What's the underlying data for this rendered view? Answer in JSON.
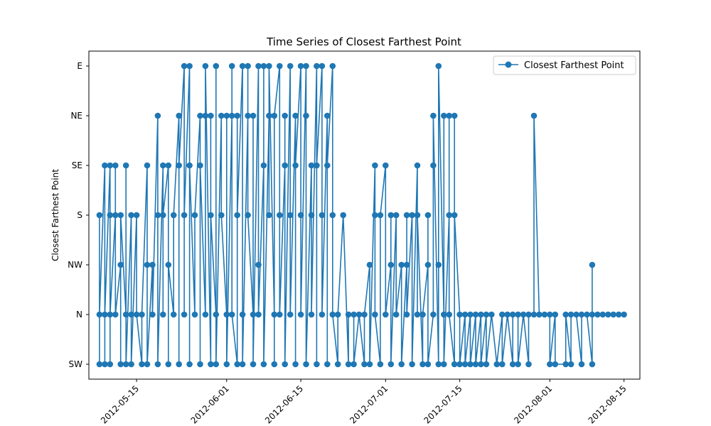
{
  "chart_data": {
    "type": "line",
    "title": "Time Series of Closest Farthest Point",
    "xlabel": "",
    "ylabel": "Closest Farthest Point",
    "y_categories": [
      "SW",
      "N",
      "NW",
      "S",
      "SE",
      "NE",
      "E"
    ],
    "x_ticks": [
      "2012-05-15",
      "2012-06-01",
      "2012-06-15",
      "2012-07-01",
      "2012-07-15",
      "2012-08-01",
      "2012-08-15"
    ],
    "xlim": [
      "2012-05-06",
      "2012-08-18"
    ],
    "grid": false,
    "legend_position": "top-right",
    "series": [
      {
        "name": "Closest Farthest Point",
        "color": "#1f77b4",
        "marker": "circle",
        "points": [
          [
            "2012-05-08",
            "SW"
          ],
          [
            "2012-05-08",
            "S"
          ],
          [
            "2012-05-08",
            "N"
          ],
          [
            "2012-05-09",
            "SE"
          ],
          [
            "2012-05-09",
            "SW"
          ],
          [
            "2012-05-09",
            "N"
          ],
          [
            "2012-05-10",
            "SE"
          ],
          [
            "2012-05-10",
            "S"
          ],
          [
            "2012-05-10",
            "SW"
          ],
          [
            "2012-05-10",
            "N"
          ],
          [
            "2012-05-11",
            "S"
          ],
          [
            "2012-05-11",
            "SE"
          ],
          [
            "2012-05-11",
            "N"
          ],
          [
            "2012-05-12",
            "NW"
          ],
          [
            "2012-05-12",
            "SW"
          ],
          [
            "2012-05-12",
            "S"
          ],
          [
            "2012-05-13",
            "N"
          ],
          [
            "2012-05-13",
            "SE"
          ],
          [
            "2012-05-13",
            "SW"
          ],
          [
            "2012-05-14",
            "S"
          ],
          [
            "2012-05-14",
            "N"
          ],
          [
            "2012-05-14",
            "SW"
          ],
          [
            "2012-05-15",
            "S"
          ],
          [
            "2012-05-15",
            "N"
          ],
          [
            "2012-05-16",
            "SW"
          ],
          [
            "2012-05-16",
            "N"
          ],
          [
            "2012-05-17",
            "SE"
          ],
          [
            "2012-05-17",
            "NW"
          ],
          [
            "2012-05-17",
            "SW"
          ],
          [
            "2012-05-18",
            "NW"
          ],
          [
            "2012-05-18",
            "N"
          ],
          [
            "2012-05-19",
            "NE"
          ],
          [
            "2012-05-19",
            "S"
          ],
          [
            "2012-05-19",
            "SW"
          ],
          [
            "2012-05-20",
            "SE"
          ],
          [
            "2012-05-20",
            "N"
          ],
          [
            "2012-05-20",
            "S"
          ],
          [
            "2012-05-21",
            "SE"
          ],
          [
            "2012-05-21",
            "SW"
          ],
          [
            "2012-05-21",
            "NW"
          ],
          [
            "2012-05-22",
            "N"
          ],
          [
            "2012-05-22",
            "S"
          ],
          [
            "2012-05-23",
            "NE"
          ],
          [
            "2012-05-23",
            "SW"
          ],
          [
            "2012-05-23",
            "SE"
          ],
          [
            "2012-05-24",
            "E"
          ],
          [
            "2012-05-24",
            "N"
          ],
          [
            "2012-05-24",
            "S"
          ],
          [
            "2012-05-25",
            "E"
          ],
          [
            "2012-05-25",
            "SW"
          ],
          [
            "2012-05-25",
            "SE"
          ],
          [
            "2012-05-26",
            "N"
          ],
          [
            "2012-05-26",
            "S"
          ],
          [
            "2012-05-27",
            "NE"
          ],
          [
            "2012-05-27",
            "SW"
          ],
          [
            "2012-05-27",
            "SE"
          ],
          [
            "2012-05-28",
            "N"
          ],
          [
            "2012-05-28",
            "NE"
          ],
          [
            "2012-05-28",
            "E"
          ],
          [
            "2012-05-29",
            "SW"
          ],
          [
            "2012-05-29",
            "NE"
          ],
          [
            "2012-05-29",
            "S"
          ],
          [
            "2012-05-30",
            "N"
          ],
          [
            "2012-05-30",
            "E"
          ],
          [
            "2012-05-30",
            "SW"
          ],
          [
            "2012-05-31",
            "NE"
          ],
          [
            "2012-05-31",
            "S"
          ],
          [
            "2012-06-01",
            "N"
          ],
          [
            "2012-06-01",
            "NE"
          ],
          [
            "2012-06-01",
            "SW"
          ],
          [
            "2012-06-02",
            "NE"
          ],
          [
            "2012-06-02",
            "E"
          ],
          [
            "2012-06-02",
            "N"
          ],
          [
            "2012-06-03",
            "SW"
          ],
          [
            "2012-06-03",
            "NE"
          ],
          [
            "2012-06-03",
            "S"
          ],
          [
            "2012-06-04",
            "E"
          ],
          [
            "2012-06-04",
            "N"
          ],
          [
            "2012-06-04",
            "SW"
          ],
          [
            "2012-06-05",
            "NE"
          ],
          [
            "2012-06-05",
            "E"
          ],
          [
            "2012-06-05",
            "S"
          ],
          [
            "2012-06-06",
            "N"
          ],
          [
            "2012-06-06",
            "NE"
          ],
          [
            "2012-06-06",
            "SW"
          ],
          [
            "2012-06-07",
            "E"
          ],
          [
            "2012-06-07",
            "NW"
          ],
          [
            "2012-06-07",
            "N"
          ],
          [
            "2012-06-08",
            "SE"
          ],
          [
            "2012-06-08",
            "E"
          ],
          [
            "2012-06-08",
            "SW"
          ],
          [
            "2012-06-09",
            "NE"
          ],
          [
            "2012-06-09",
            "S"
          ],
          [
            "2012-06-09",
            "E"
          ],
          [
            "2012-06-10",
            "N"
          ],
          [
            "2012-06-10",
            "SW"
          ],
          [
            "2012-06-10",
            "NE"
          ],
          [
            "2012-06-11",
            "E"
          ],
          [
            "2012-06-11",
            "S"
          ],
          [
            "2012-06-11",
            "N"
          ],
          [
            "2012-06-12",
            "SE"
          ],
          [
            "2012-06-12",
            "NE"
          ],
          [
            "2012-06-12",
            "SW"
          ],
          [
            "2012-06-13",
            "E"
          ],
          [
            "2012-06-13",
            "S"
          ],
          [
            "2012-06-13",
            "N"
          ],
          [
            "2012-06-14",
            "NE"
          ],
          [
            "2012-06-14",
            "SW"
          ],
          [
            "2012-06-14",
            "SE"
          ],
          [
            "2012-06-15",
            "E"
          ],
          [
            "2012-06-15",
            "S"
          ],
          [
            "2012-06-15",
            "N"
          ],
          [
            "2012-06-16",
            "E"
          ],
          [
            "2012-06-16",
            "NE"
          ],
          [
            "2012-06-16",
            "SW"
          ],
          [
            "2012-06-17",
            "SE"
          ],
          [
            "2012-06-17",
            "S"
          ],
          [
            "2012-06-17",
            "N"
          ],
          [
            "2012-06-18",
            "E"
          ],
          [
            "2012-06-18",
            "SW"
          ],
          [
            "2012-06-18",
            "SE"
          ],
          [
            "2012-06-19",
            "E"
          ],
          [
            "2012-06-19",
            "S"
          ],
          [
            "2012-06-19",
            "N"
          ],
          [
            "2012-06-20",
            "NE"
          ],
          [
            "2012-06-20",
            "SW"
          ],
          [
            "2012-06-20",
            "SE"
          ],
          [
            "2012-06-21",
            "E"
          ],
          [
            "2012-06-21",
            "S"
          ],
          [
            "2012-06-21",
            "N"
          ],
          [
            "2012-06-22",
            "SW"
          ],
          [
            "2012-06-22",
            "N"
          ],
          [
            "2012-06-23",
            "S"
          ],
          [
            "2012-06-24",
            "SW"
          ],
          [
            "2012-06-24",
            "N"
          ],
          [
            "2012-06-25",
            "N"
          ],
          [
            "2012-06-25",
            "SW"
          ],
          [
            "2012-06-26",
            "N"
          ],
          [
            "2012-06-27",
            "SW"
          ],
          [
            "2012-06-27",
            "N"
          ],
          [
            "2012-06-28",
            "NW"
          ],
          [
            "2012-06-28",
            "SW"
          ],
          [
            "2012-06-29",
            "SE"
          ],
          [
            "2012-06-29",
            "S"
          ],
          [
            "2012-06-29",
            "N"
          ],
          [
            "2012-06-30",
            "SW"
          ],
          [
            "2012-06-30",
            "S"
          ],
          [
            "2012-07-01",
            "SE"
          ],
          [
            "2012-07-01",
            "N"
          ],
          [
            "2012-07-02",
            "NW"
          ],
          [
            "2012-07-02",
            "S"
          ],
          [
            "2012-07-02",
            "SW"
          ],
          [
            "2012-07-03",
            "S"
          ],
          [
            "2012-07-03",
            "N"
          ],
          [
            "2012-07-04",
            "NW"
          ],
          [
            "2012-07-04",
            "SW"
          ],
          [
            "2012-07-05",
            "NW"
          ],
          [
            "2012-07-05",
            "S"
          ],
          [
            "2012-07-05",
            "N"
          ],
          [
            "2012-07-06",
            "S"
          ],
          [
            "2012-07-06",
            "SW"
          ],
          [
            "2012-07-07",
            "SE"
          ],
          [
            "2012-07-07",
            "N"
          ],
          [
            "2012-07-07",
            "S"
          ],
          [
            "2012-07-08",
            "SW"
          ],
          [
            "2012-07-08",
            "N"
          ],
          [
            "2012-07-09",
            "NW"
          ],
          [
            "2012-07-09",
            "S"
          ],
          [
            "2012-07-09",
            "SW"
          ],
          [
            "2012-07-10",
            "N"
          ],
          [
            "2012-07-10",
            "SE"
          ],
          [
            "2012-07-10",
            "NE"
          ],
          [
            "2012-07-11",
            "SW"
          ],
          [
            "2012-07-11",
            "NW"
          ],
          [
            "2012-07-11",
            "E"
          ],
          [
            "2012-07-12",
            "N"
          ],
          [
            "2012-07-12",
            "NE"
          ],
          [
            "2012-07-12",
            "SW"
          ],
          [
            "2012-07-13",
            "S"
          ],
          [
            "2012-07-13",
            "NE"
          ],
          [
            "2012-07-13",
            "N"
          ],
          [
            "2012-07-14",
            "SW"
          ],
          [
            "2012-07-14",
            "NE"
          ],
          [
            "2012-07-14",
            "S"
          ],
          [
            "2012-07-15",
            "N"
          ],
          [
            "2012-07-15",
            "SW"
          ],
          [
            "2012-07-16",
            "N"
          ],
          [
            "2012-07-16",
            "SW"
          ],
          [
            "2012-07-17",
            "N"
          ],
          [
            "2012-07-17",
            "SW"
          ],
          [
            "2012-07-18",
            "N"
          ],
          [
            "2012-07-18",
            "SW"
          ],
          [
            "2012-07-19",
            "N"
          ],
          [
            "2012-07-19",
            "SW"
          ],
          [
            "2012-07-20",
            "N"
          ],
          [
            "2012-07-20",
            "SW"
          ],
          [
            "2012-07-21",
            "N"
          ],
          [
            "2012-07-22",
            "SW"
          ],
          [
            "2012-07-23",
            "N"
          ],
          [
            "2012-07-23",
            "SW"
          ],
          [
            "2012-07-24",
            "N"
          ],
          [
            "2012-07-25",
            "SW"
          ],
          [
            "2012-07-25",
            "N"
          ],
          [
            "2012-07-26",
            "N"
          ],
          [
            "2012-07-26",
            "SW"
          ],
          [
            "2012-07-27",
            "N"
          ],
          [
            "2012-07-28",
            "SW"
          ],
          [
            "2012-07-28",
            "N"
          ],
          [
            "2012-07-29",
            "N"
          ],
          [
            "2012-07-29",
            "NE"
          ],
          [
            "2012-07-30",
            "N"
          ],
          [
            "2012-07-31",
            "N"
          ],
          [
            "2012-08-01",
            "N"
          ],
          [
            "2012-08-01",
            "SW"
          ],
          [
            "2012-08-02",
            "N"
          ],
          [
            "2012-08-02",
            "SW"
          ],
          [
            "2012-08-04",
            "SW"
          ],
          [
            "2012-08-04",
            "N"
          ],
          [
            "2012-08-05",
            "SW"
          ],
          [
            "2012-08-05",
            "N"
          ],
          [
            "2012-08-06",
            "N"
          ],
          [
            "2012-08-07",
            "SW"
          ],
          [
            "2012-08-07",
            "N"
          ],
          [
            "2012-08-08",
            "N"
          ],
          [
            "2012-08-09",
            "SW"
          ],
          [
            "2012-08-09",
            "NW"
          ],
          [
            "2012-08-09",
            "N"
          ],
          [
            "2012-08-10",
            "N"
          ],
          [
            "2012-08-11",
            "N"
          ],
          [
            "2012-08-12",
            "N"
          ],
          [
            "2012-08-13",
            "N"
          ],
          [
            "2012-08-14",
            "N"
          ],
          [
            "2012-08-15",
            "N"
          ]
        ]
      }
    ]
  }
}
